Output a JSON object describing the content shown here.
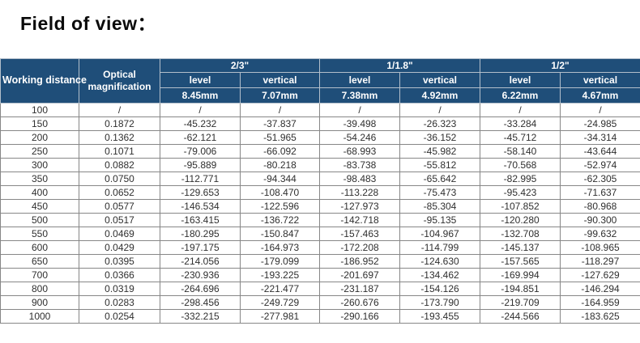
{
  "title": "Field of view：",
  "colors": {
    "header_bg": "#1f4e79",
    "header_text": "#ffffff",
    "header_divider": "#b3bfcb",
    "cell_border": "#878787",
    "data_text": "#2f2f2f"
  },
  "table": {
    "col1_header": "Working distance",
    "col2_header": "Optical magnification",
    "labels": {
      "level": "level",
      "vertical": "vertical"
    },
    "groups": [
      {
        "label": "2/3\"",
        "level_mm": "8.45mm",
        "vertical_mm": "7.07mm"
      },
      {
        "label": "1/1.8\"",
        "level_mm": "7.38mm",
        "vertical_mm": "4.92mm"
      },
      {
        "label": "1/2\"",
        "level_mm": "6.22mm",
        "vertical_mm": "4.67mm"
      }
    ],
    "rows": [
      [
        "100",
        "/",
        "/",
        "/",
        "/",
        "/",
        "/",
        "/"
      ],
      [
        "150",
        "0.1872",
        "-45.232",
        "-37.837",
        "-39.498",
        "-26.323",
        "-33.284",
        "-24.985"
      ],
      [
        "200",
        "0.1362",
        "-62.121",
        "-51.965",
        "-54.246",
        "-36.152",
        "-45.712",
        "-34.314"
      ],
      [
        "250",
        "0.1071",
        "-79.006",
        "-66.092",
        "-68.993",
        "-45.982",
        "-58.140",
        "-43.644"
      ],
      [
        "300",
        "0.0882",
        "-95.889",
        "-80.218",
        "-83.738",
        "-55.812",
        "-70.568",
        "-52.974"
      ],
      [
        "350",
        "0.0750",
        "-112.771",
        "-94.344",
        "-98.483",
        "-65.642",
        "-82.995",
        "-62.305"
      ],
      [
        "400",
        "0.0652",
        "-129.653",
        "-108.470",
        "-113.228",
        "-75.473",
        "-95.423",
        "-71.637"
      ],
      [
        "450",
        "0.0577",
        "-146.534",
        "-122.596",
        "-127.973",
        "-85.304",
        "-107.852",
        "-80.968"
      ],
      [
        "500",
        "0.0517",
        "-163.415",
        "-136.722",
        "-142.718",
        "-95.135",
        "-120.280",
        "-90.300"
      ],
      [
        "550",
        "0.0469",
        "-180.295",
        "-150.847",
        "-157.463",
        "-104.967",
        "-132.708",
        "-99.632"
      ],
      [
        "600",
        "0.0429",
        "-197.175",
        "-164.973",
        "-172.208",
        "-114.799",
        "-145.137",
        "-108.965"
      ],
      [
        "650",
        "0.0395",
        "-214.056",
        "-179.099",
        "-186.952",
        "-124.630",
        "-157.565",
        "-118.297"
      ],
      [
        "700",
        "0.0366",
        "-230.936",
        "-193.225",
        "-201.697",
        "-134.462",
        "-169.994",
        "-127.629"
      ],
      [
        "800",
        "0.0319",
        "-264.696",
        "-221.477",
        "-231.187",
        "-154.126",
        "-194.851",
        "-146.294"
      ],
      [
        "900",
        "0.0283",
        "-298.456",
        "-249.729",
        "-260.676",
        "-173.790",
        "-219.709",
        "-164.959"
      ],
      [
        "1000",
        "0.0254",
        "-332.215",
        "-277.981",
        "-290.166",
        "-193.455",
        "-244.566",
        "-183.625"
      ]
    ]
  }
}
